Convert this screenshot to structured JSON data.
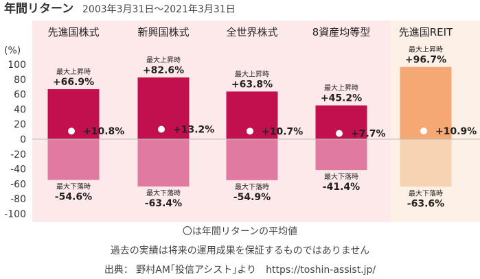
{
  "chart_data": {
    "type": "bar",
    "title": "年間リターン",
    "subtitle": "2003年3月31日～2021年3月31日",
    "yunit": "(%)",
    "ylim": [
      -100,
      100
    ],
    "yticks": [
      100,
      80,
      60,
      40,
      20,
      0,
      -20,
      -40,
      -60,
      -80,
      -100
    ],
    "categories": [
      "先進国株式",
      "新興国株式",
      "全世界株式",
      "8資産均等型",
      "先進国REIT"
    ],
    "max_label": "最大上昇時",
    "min_label": "最大下落時",
    "max": [
      66.9,
      82.6,
      63.8,
      45.2,
      96.7
    ],
    "min": [
      -54.6,
      -63.4,
      -54.9,
      -41.4,
      -63.6
    ],
    "average": [
      10.8,
      13.2,
      10.7,
      7.7,
      10.9
    ],
    "max_text": [
      "+66.9%",
      "+82.6%",
      "+63.8%",
      "+45.2%",
      "+96.7%"
    ],
    "min_text": [
      "-54.6%",
      "-63.4%",
      "-54.9%",
      "-41.4%",
      "-63.6%"
    ],
    "avg_text": [
      "+10.8%",
      "+13.2%",
      "+10.7%",
      "+7.7%",
      "+10.9%"
    ],
    "colors": {
      "bar_up": "#c2104f",
      "bar_down": "#e07aa0",
      "reit_up": "#f5a873",
      "reit_down": "#f8d3b2",
      "group_bg": "#fde8ea",
      "reit_bg": "#fdf1e7",
      "avg_dot": "#ffffff"
    }
  },
  "notes": {
    "legend": "〇は年間リターンの平均値",
    "disclaimer": "過去の実績は将来の運用成果を保証するものではありません",
    "source": "出典： 野村AM｢投信アシスト｣より　https://toshin-assist.jp/"
  }
}
